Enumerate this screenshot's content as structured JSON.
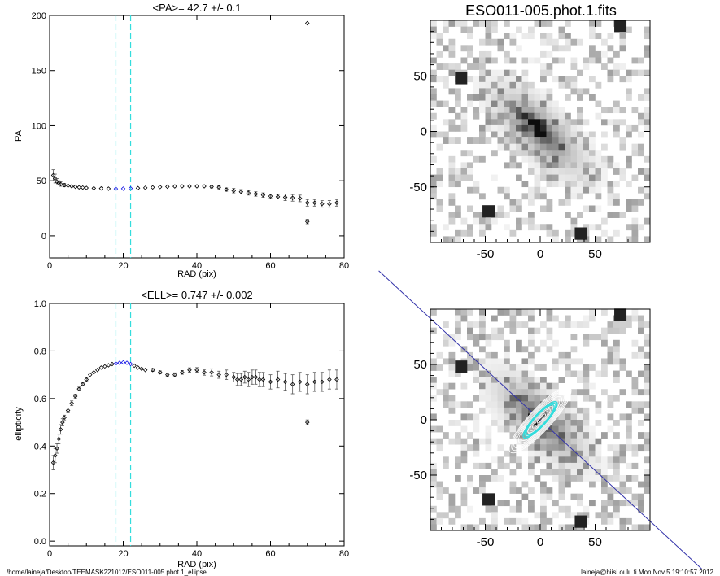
{
  "footer": {
    "left": "/home/laineja/Desktop/TEEMASK221012/ESO011-005.phot.1_ellipse",
    "right": "laineja@hiisi.oulu.fi  Mon Nov  5 19:10:57 2012"
  },
  "chart_data": [
    {
      "id": "pa",
      "type": "scatter",
      "title": "<PA>=  42.7 +/-   0.1",
      "xlabel": "RAD (pix)",
      "ylabel": "PA",
      "xlim": [
        0,
        80
      ],
      "ylim": [
        -20,
        200
      ],
      "xticks": [
        0,
        20,
        40,
        60,
        80
      ],
      "yticks": [
        0,
        50,
        100,
        150,
        200
      ],
      "vlines": [
        18,
        22
      ],
      "highlight_range": [
        18,
        22
      ],
      "colors": {
        "points": "#000000",
        "highlight": "#1a1ae6",
        "vlines": "#33dddd"
      },
      "series": [
        {
          "x": [
            1,
            1.5,
            2,
            2.5,
            3,
            4,
            5,
            6,
            7,
            8,
            9,
            10,
            12,
            14,
            16,
            18,
            20,
            22,
            24,
            26,
            28,
            30,
            32,
            34,
            36,
            38,
            40,
            42,
            44,
            46,
            48,
            50,
            52,
            54,
            56,
            58,
            60,
            62,
            64,
            66,
            68,
            70,
            70,
            72,
            74,
            76,
            78
          ],
          "y": [
            55,
            52,
            49,
            48,
            47,
            46,
            45.5,
            45,
            44.5,
            44,
            43.8,
            43.5,
            43.2,
            43,
            42.8,
            42.7,
            42.8,
            43,
            43.3,
            43.6,
            44,
            44.3,
            44.6,
            44.9,
            45,
            45,
            45,
            45,
            44.6,
            44,
            42,
            41,
            40,
            39,
            38,
            37,
            36,
            35.5,
            35,
            34.5,
            34,
            30,
            13,
            30,
            29,
            29,
            30
          ],
          "err": [
            5,
            4,
            3,
            2,
            2,
            1.5,
            1,
            1,
            1,
            1,
            1,
            1,
            0.8,
            0.6,
            0.5,
            0.5,
            0.5,
            0.5,
            0.6,
            0.6,
            0.7,
            0.7,
            0.8,
            0.8,
            0.9,
            1,
            1,
            1,
            1.2,
            1.3,
            1.5,
            2,
            2,
            2,
            2,
            2,
            2,
            2,
            3,
            3,
            3,
            3,
            2,
            3,
            3,
            3,
            3
          ],
          "outliers": [
            [
              70,
              193
            ]
          ]
        }
      ]
    },
    {
      "id": "ell",
      "type": "scatter",
      "title": "<ELL>= 0.747 +/-  0.002",
      "xlabel": "RAD (pix)",
      "ylabel": "ellipticity",
      "xlim": [
        0,
        80
      ],
      "ylim": [
        -0.02,
        1.0
      ],
      "xticks": [
        0,
        20,
        40,
        60,
        80
      ],
      "yticks": [
        0.0,
        0.2,
        0.4,
        0.6,
        0.8,
        1.0
      ],
      "vlines": [
        18,
        22
      ],
      "highlight_range": [
        18,
        22
      ],
      "colors": {
        "points": "#000000",
        "highlight": "#1a1ae6",
        "vlines": "#33dddd"
      },
      "series": [
        {
          "x": [
            1,
            1.5,
            2,
            2.5,
            3,
            3.5,
            4,
            5,
            6,
            7,
            8,
            9,
            10,
            11,
            12,
            13,
            14,
            15,
            16,
            17,
            18,
            19,
            20,
            21,
            22,
            23,
            24,
            25,
            26,
            28,
            30,
            32,
            34,
            36,
            38,
            40,
            42,
            44,
            46,
            48,
            50,
            51,
            52,
            53,
            54,
            55,
            56,
            57,
            58,
            60,
            62,
            64,
            66,
            68,
            70,
            70,
            72,
            74,
            76,
            78
          ],
          "y": [
            0.33,
            0.36,
            0.39,
            0.43,
            0.47,
            0.5,
            0.52,
            0.55,
            0.58,
            0.61,
            0.64,
            0.66,
            0.68,
            0.7,
            0.71,
            0.72,
            0.73,
            0.735,
            0.74,
            0.745,
            0.747,
            0.75,
            0.752,
            0.75,
            0.745,
            0.738,
            0.73,
            0.725,
            0.72,
            0.72,
            0.71,
            0.7,
            0.7,
            0.71,
            0.72,
            0.72,
            0.71,
            0.71,
            0.7,
            0.7,
            0.69,
            0.68,
            0.68,
            0.69,
            0.68,
            0.69,
            0.69,
            0.68,
            0.68,
            0.67,
            0.68,
            0.67,
            0.66,
            0.67,
            0.66,
            0.5,
            0.67,
            0.67,
            0.68,
            0.68
          ],
          "err": [
            0.03,
            0.03,
            0.02,
            0.02,
            0.02,
            0.015,
            0.01,
            0.01,
            0.01,
            0.008,
            0.008,
            0.006,
            0.006,
            0.005,
            0.005,
            0.005,
            0.004,
            0.004,
            0.003,
            0.003,
            0.002,
            0.002,
            0.002,
            0.003,
            0.003,
            0.004,
            0.004,
            0.005,
            0.005,
            0.006,
            0.006,
            0.007,
            0.008,
            0.008,
            0.009,
            0.01,
            0.012,
            0.015,
            0.015,
            0.02,
            0.02,
            0.025,
            0.025,
            0.025,
            0.03,
            0.03,
            0.03,
            0.03,
            0.03,
            0.03,
            0.035,
            0.035,
            0.04,
            0.04,
            0.04,
            0.01,
            0.04,
            0.04,
            0.04,
            0.04
          ],
          "outliers": []
        }
      ]
    },
    {
      "id": "img1",
      "type": "heatmap",
      "title": "ESO011-005.phot.1.fits",
      "xlabel": "",
      "ylabel": "",
      "xlim": [
        -100,
        100
      ],
      "ylim": [
        -100,
        100
      ],
      "xticks": [
        -50,
        0,
        50
      ],
      "yticks": [
        -50,
        0,
        50
      ],
      "grid_cells": 36,
      "galaxy": {
        "pa_deg": 42.7,
        "ellipticity": 0.747,
        "major_axis": 55
      },
      "colors": {
        "sky": "#ffffff",
        "core": "#111111"
      }
    },
    {
      "id": "img2",
      "type": "heatmap",
      "title": "",
      "xlabel": "",
      "ylabel": "",
      "xlim": [
        -100,
        100
      ],
      "ylim": [
        -100,
        100
      ],
      "xticks": [
        -50,
        0,
        50
      ],
      "yticks": [
        -50,
        0,
        50
      ],
      "grid_cells": 36,
      "contour_radii": [
        4,
        7,
        10,
        13,
        16,
        19,
        22,
        25,
        28,
        31,
        34,
        37,
        40
      ],
      "fit_radii": [
        18,
        20,
        22
      ],
      "major_axis_line": true,
      "colors": {
        "contour": "#ffffff",
        "fit": "#33dddd",
        "axis_line": "#3333aa"
      }
    }
  ]
}
